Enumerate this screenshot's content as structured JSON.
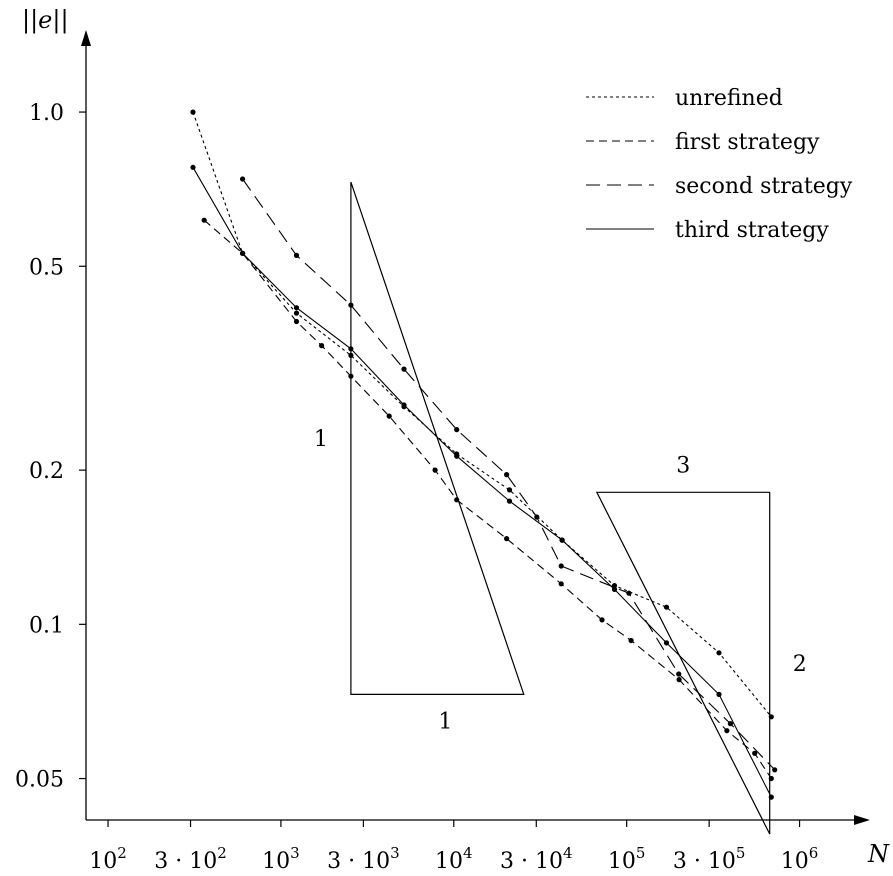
{
  "chart_data": {
    "type": "line",
    "xscale": "log",
    "yscale": "log",
    "xlabel": "N",
    "ylabel": "||e||",
    "xlim": [
      50,
      1500000
    ],
    "ylim": [
      0.0415,
      1.7
    ],
    "x_ticks": [
      {
        "value": 100,
        "label": "10",
        "sup": "2"
      },
      {
        "value": 300,
        "label": "3 · 10",
        "sup": "2"
      },
      {
        "value": 1000,
        "label": "10",
        "sup": "3"
      },
      {
        "value": 3000,
        "label": "3 · 10",
        "sup": "3"
      },
      {
        "value": 10000,
        "label": "10",
        "sup": "4"
      },
      {
        "value": 30000,
        "label": "3 · 10",
        "sup": "4"
      },
      {
        "value": 100000,
        "label": "10",
        "sup": "5"
      },
      {
        "value": 300000,
        "label": "3 · 10",
        "sup": "5"
      },
      {
        "value": 1000000,
        "label": "10",
        "sup": "6"
      }
    ],
    "y_ticks": [
      {
        "value": 1.0,
        "label": "1.0"
      },
      {
        "value": 0.5,
        "label": "0.5"
      },
      {
        "value": 0.2,
        "label": "0.2"
      },
      {
        "value": 0.1,
        "label": "0.1"
      },
      {
        "value": 0.05,
        "label": "0.05"
      }
    ],
    "legend_position": "top-right",
    "series": [
      {
        "name": "unrefined",
        "dash": "3,3",
        "x": [
          310,
          600,
          1230,
          2540,
          5150,
          10400,
          21000,
          42300,
          85000,
          170000,
          342000,
          686000
        ],
        "y": [
          1.0,
          0.53,
          0.405,
          0.335,
          0.266,
          0.215,
          0.183,
          0.146,
          0.119,
          0.108,
          0.088,
          0.066
        ]
      },
      {
        "name": "first strategy",
        "dash": "8,5",
        "x": [
          360,
          600,
          1230,
          1720,
          2540,
          4230,
          7800,
          10400,
          20200,
          41800,
          72000,
          106000,
          201000,
          380000,
          550000,
          686000
        ],
        "y": [
          0.615,
          0.53,
          0.39,
          0.35,
          0.305,
          0.255,
          0.2,
          0.175,
          0.147,
          0.12,
          0.102,
          0.093,
          0.078,
          0.062,
          0.056,
          0.05
        ]
      },
      {
        "name": "second strategy",
        "dash": "14,7",
        "x": [
          600,
          1230,
          2540,
          5150,
          10400,
          20200,
          30200,
          41800,
          103000,
          200000,
          398000,
          718000
        ],
        "y": [
          0.74,
          0.525,
          0.42,
          0.315,
          0.24,
          0.196,
          0.162,
          0.13,
          0.115,
          0.08,
          0.064,
          0.052
        ]
      },
      {
        "name": "third strategy",
        "dash": "",
        "x": [
          310,
          600,
          1230,
          2540,
          5150,
          10400,
          21000,
          42300,
          85000,
          170000,
          342000,
          686000
        ],
        "y": [
          0.78,
          0.53,
          0.415,
          0.345,
          0.268,
          0.213,
          0.174,
          0.146,
          0.117,
          0.092,
          0.073,
          0.046
        ]
      }
    ],
    "triangles": [
      {
        "corner": [
          2540,
          0.073
        ],
        "dx_decades": 1,
        "dy_decades": 1,
        "orientation": "lower-left",
        "horizontal_label": "1",
        "vertical_label": "1"
      },
      {
        "corner": [
          672000,
          0.181
        ],
        "dx_decades": 1,
        "dy_decades": 0.667,
        "orientation": "upper-right",
        "horizontal_label": "3",
        "vertical_label": "2"
      }
    ]
  }
}
